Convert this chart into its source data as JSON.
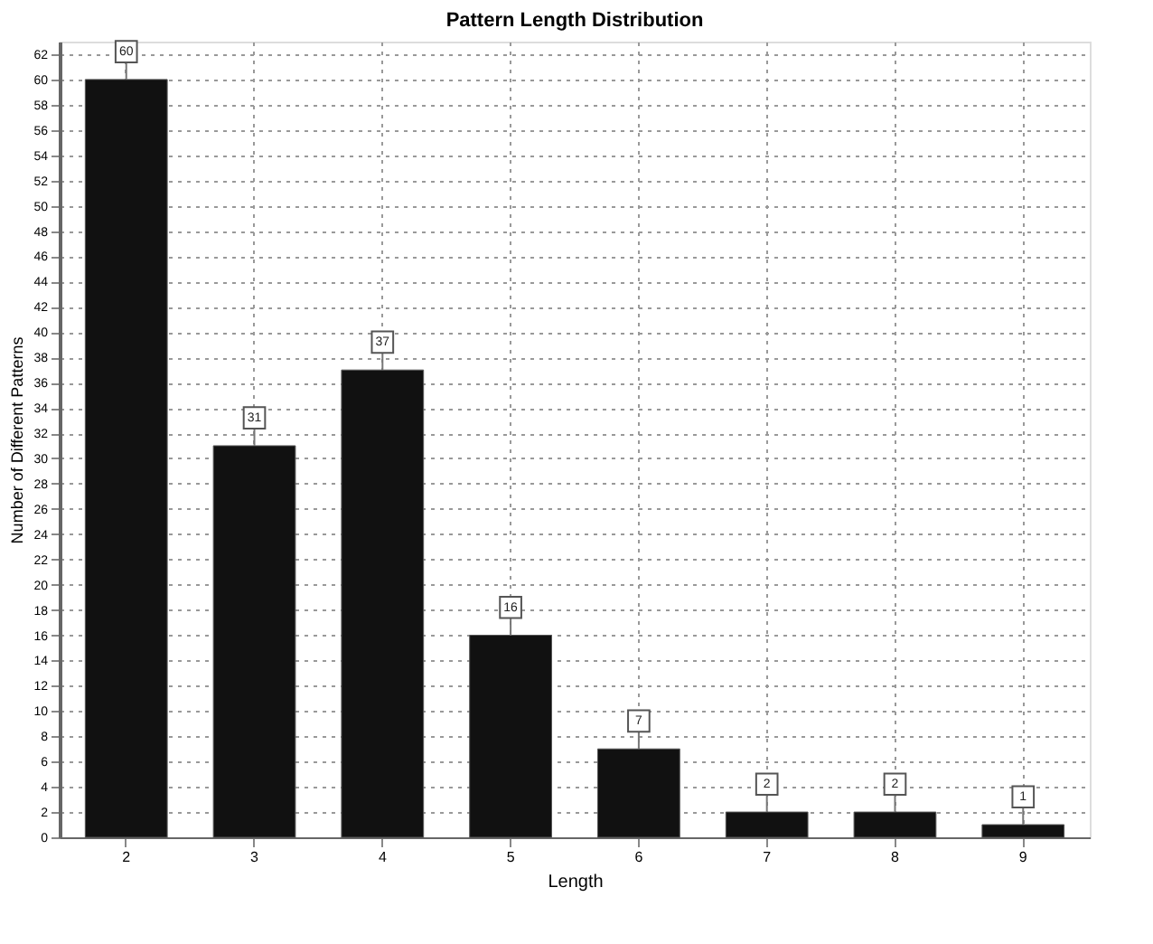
{
  "chart_data": {
    "type": "bar",
    "title": "Pattern Length Distribution",
    "xlabel": "Length",
    "ylabel": "Number of Different Patterns",
    "categories": [
      "2",
      "3",
      "4",
      "5",
      "6",
      "7",
      "8",
      "9"
    ],
    "values": [
      60,
      31,
      37,
      16,
      7,
      2,
      2,
      1
    ],
    "color": "#111111",
    "ylim": [
      0,
      63
    ],
    "yticks": [
      0,
      2,
      4,
      6,
      8,
      10,
      12,
      14,
      16,
      18,
      20,
      22,
      24,
      26,
      28,
      30,
      32,
      34,
      36,
      38,
      40,
      42,
      44,
      46,
      48,
      50,
      52,
      54,
      56,
      58,
      60,
      62
    ],
    "grid": true,
    "data_labels": true
  }
}
